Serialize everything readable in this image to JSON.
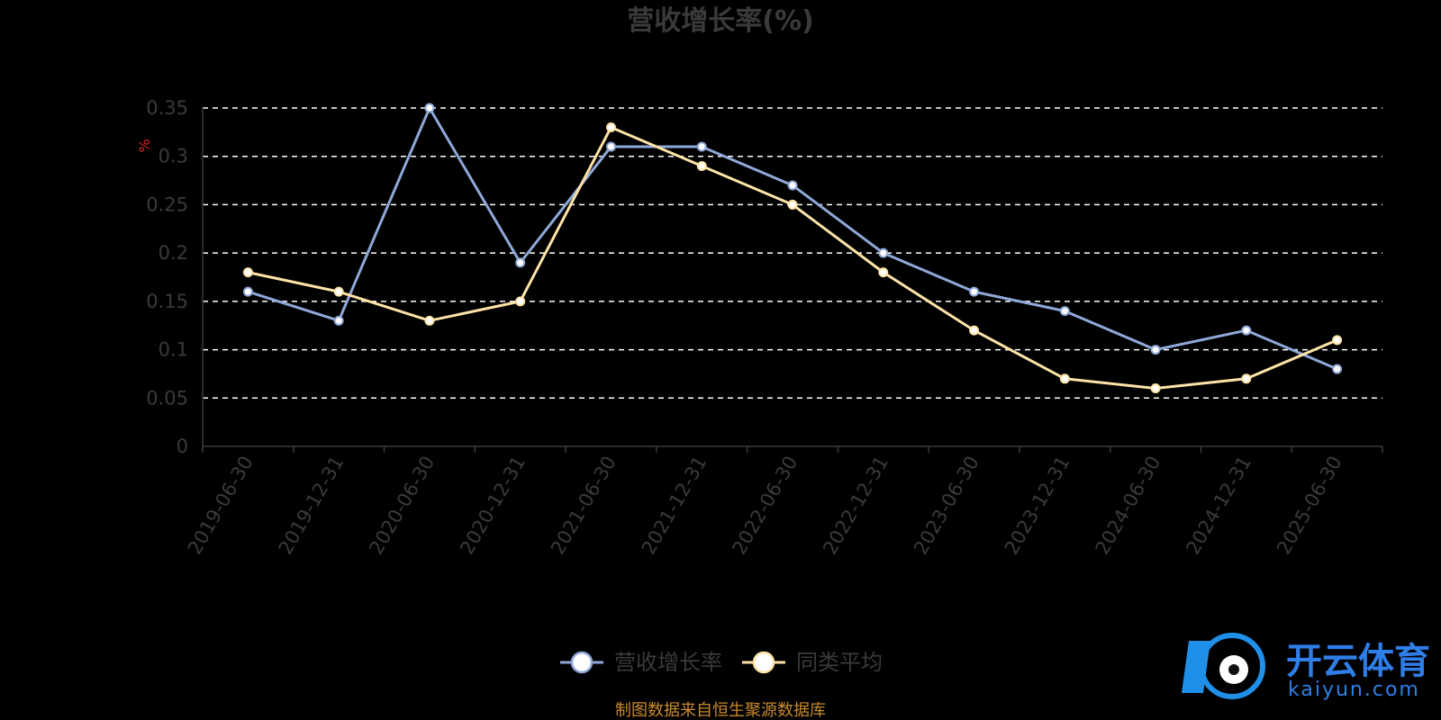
{
  "chart_data": {
    "type": "line",
    "title": "营收增长率(%)",
    "ylabel": "%",
    "ylim": [
      0,
      0.35
    ],
    "yticks": [
      "0",
      "0.05",
      "0.1",
      "0.15",
      "0.2",
      "0.25",
      "0.3",
      "0.35"
    ],
    "grid": true,
    "legend_position": "bottom",
    "categories": [
      "2019-06-30",
      "2019-12-31",
      "2020-06-30",
      "2020-12-31",
      "2021-06-30",
      "2021-12-31",
      "2022-06-30",
      "2022-12-31",
      "2023-06-30",
      "2023-12-31",
      "2024-06-30",
      "2024-12-31",
      "2025-06-30"
    ],
    "series": [
      {
        "name": "营收增长率",
        "color": "#8fa8d8",
        "values": [
          0.16,
          0.13,
          0.35,
          0.19,
          0.31,
          0.31,
          0.27,
          0.2,
          0.16,
          0.14,
          0.1,
          0.12,
          0.08
        ]
      },
      {
        "name": "同类平均",
        "color": "#fde3a7",
        "values": [
          0.18,
          0.16,
          0.13,
          0.15,
          0.33,
          0.29,
          0.25,
          0.18,
          0.12,
          0.07,
          0.06,
          0.07,
          0.11
        ]
      }
    ]
  },
  "footer": {
    "source": "制图数据来自恒生聚源数据库"
  },
  "watermark": {
    "brand": "开云体育",
    "domain": "kaiyun.com"
  }
}
